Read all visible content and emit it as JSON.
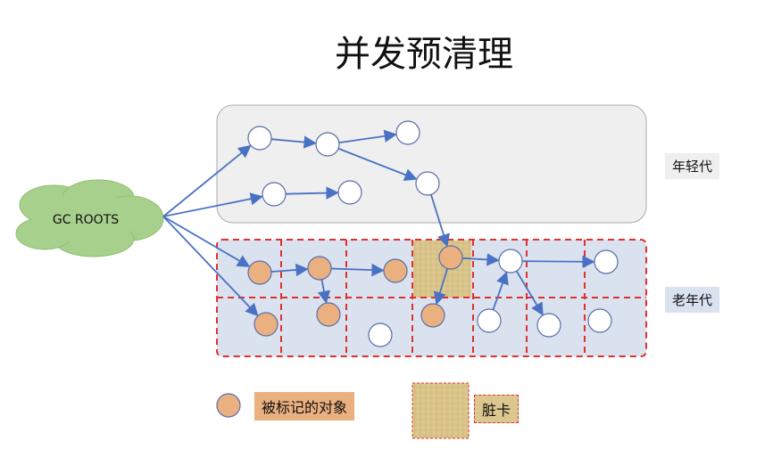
{
  "title": "并发预清理",
  "roots_label": "GC ROOTS",
  "young_label": "年轻代",
  "old_label": "老年代",
  "legend": {
    "marked": "被标记的对象",
    "dirty": "脏卡"
  },
  "colors": {
    "marked": "#ebb080",
    "edge": "#4a72c4",
    "old_bg": "#dae2f0",
    "young_bg": "#efefef",
    "card_border": "#e03030",
    "cloud": "#a8d08d",
    "dirty": "#d9c48c"
  }
}
